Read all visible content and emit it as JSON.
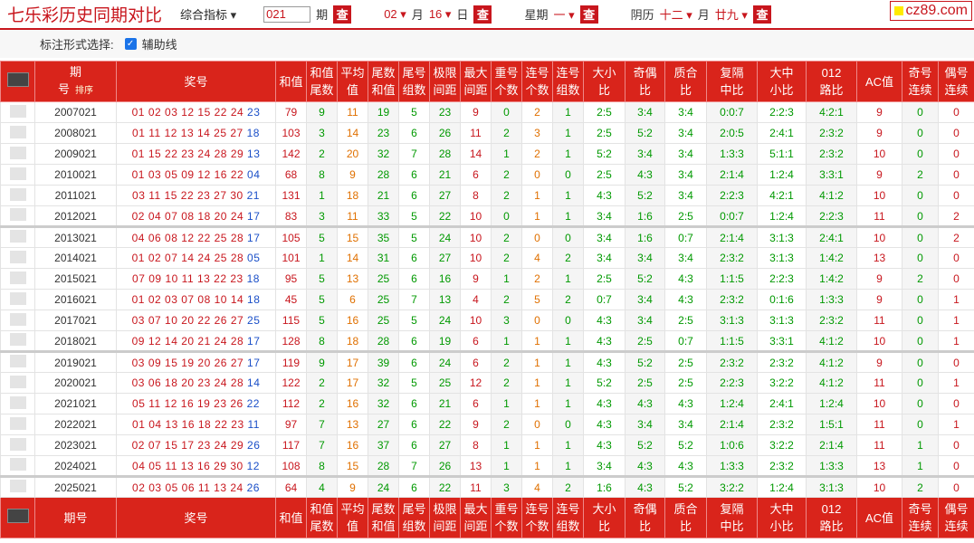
{
  "header": {
    "title": "七乐彩历史同期对比",
    "select": "综合指标",
    "issue": "021",
    "issue_unit": "期",
    "query": "查",
    "month": "02",
    "month_unit": "月",
    "day": "16",
    "day_unit": "日",
    "weekday_label": "星期",
    "weekday": "一",
    "lunar_label": "阴历",
    "lunar_month": "十二",
    "lunar_month_unit": "月",
    "lunar_day": "廿九",
    "logo": "cz89.com"
  },
  "options": {
    "label": "标注形式选择:",
    "checkbox": "辅助线"
  },
  "table": {
    "columns": [
      [
        "期",
        "号"
      ],
      [
        "奖号"
      ],
      [
        "和值"
      ],
      [
        "和值",
        "尾数"
      ],
      [
        "平均",
        "值"
      ],
      [
        "尾数",
        "和值"
      ],
      [
        "尾号",
        "组数"
      ],
      [
        "极限",
        "间距"
      ],
      [
        "最大",
        "间距"
      ],
      [
        "重号",
        "个数"
      ],
      [
        "连号",
        "个数"
      ],
      [
        "连号",
        "组数"
      ],
      [
        "大小",
        "比"
      ],
      [
        "奇偶",
        "比"
      ],
      [
        "质合",
        "比"
      ],
      [
        "复隔",
        "中比"
      ],
      [
        "大中",
        "小比"
      ],
      [
        "012",
        "路比"
      ],
      [
        "AC值"
      ],
      [
        "奇号",
        "连续"
      ],
      [
        "偶号",
        "连续"
      ]
    ],
    "sort": "排序",
    "footer_issue": "期号",
    "rows": [
      {
        "issue": "2007021",
        "balls": [
          "01",
          "02",
          "03",
          "12",
          "15",
          "22",
          "24"
        ],
        "special": "23",
        "stats": [
          79,
          9,
          11,
          19,
          5,
          23,
          9,
          0,
          2,
          1,
          "2:5",
          "3:4",
          "3:4",
          "0:0:7",
          "2:2:3",
          "4:2:1",
          9,
          0,
          0
        ]
      },
      {
        "issue": "2008021",
        "balls": [
          "01",
          "11",
          "12",
          "13",
          "14",
          "25",
          "27"
        ],
        "special": "18",
        "stats": [
          103,
          3,
          14,
          23,
          6,
          26,
          11,
          2,
          3,
          1,
          "2:5",
          "5:2",
          "3:4",
          "2:0:5",
          "2:4:1",
          "2:3:2",
          9,
          0,
          0
        ]
      },
      {
        "issue": "2009021",
        "balls": [
          "01",
          "15",
          "22",
          "23",
          "24",
          "28",
          "29"
        ],
        "special": "13",
        "stats": [
          142,
          2,
          20,
          32,
          7,
          28,
          14,
          1,
          2,
          1,
          "5:2",
          "3:4",
          "3:4",
          "1:3:3",
          "5:1:1",
          "2:3:2",
          10,
          0,
          0
        ]
      },
      {
        "issue": "2010021",
        "balls": [
          "01",
          "03",
          "05",
          "09",
          "12",
          "16",
          "22"
        ],
        "special": "04",
        "stats": [
          68,
          8,
          9,
          28,
          6,
          21,
          6,
          2,
          0,
          0,
          "2:5",
          "4:3",
          "3:4",
          "2:1:4",
          "1:2:4",
          "3:3:1",
          9,
          2,
          0
        ]
      },
      {
        "issue": "2011021",
        "balls": [
          "03",
          "11",
          "15",
          "22",
          "23",
          "27",
          "30"
        ],
        "special": "21",
        "stats": [
          131,
          1,
          18,
          21,
          6,
          27,
          8,
          2,
          1,
          1,
          "4:3",
          "5:2",
          "3:4",
          "2:2:3",
          "4:2:1",
          "4:1:2",
          10,
          0,
          0
        ]
      },
      {
        "issue": "2012021",
        "balls": [
          "02",
          "04",
          "07",
          "08",
          "18",
          "20",
          "24"
        ],
        "special": "17",
        "stats": [
          83,
          3,
          11,
          33,
          5,
          22,
          10,
          0,
          1,
          1,
          "3:4",
          "1:6",
          "2:5",
          "0:0:7",
          "1:2:4",
          "2:2:3",
          11,
          0,
          2
        ]
      },
      {
        "issue": "2013021",
        "balls": [
          "04",
          "06",
          "08",
          "12",
          "22",
          "25",
          "28"
        ],
        "special": "17",
        "stats": [
          105,
          5,
          15,
          35,
          5,
          24,
          10,
          2,
          0,
          0,
          "3:4",
          "1:6",
          "0:7",
          "2:1:4",
          "3:1:3",
          "2:4:1",
          10,
          0,
          2
        ]
      },
      {
        "issue": "2014021",
        "balls": [
          "01",
          "02",
          "07",
          "14",
          "24",
          "25",
          "28"
        ],
        "special": "05",
        "stats": [
          101,
          1,
          14,
          31,
          6,
          27,
          10,
          2,
          4,
          2,
          "3:4",
          "3:4",
          "3:4",
          "2:3:2",
          "3:1:3",
          "1:4:2",
          13,
          0,
          0
        ]
      },
      {
        "issue": "2015021",
        "balls": [
          "07",
          "09",
          "10",
          "11",
          "13",
          "22",
          "23"
        ],
        "special": "18",
        "stats": [
          95,
          5,
          13,
          25,
          6,
          16,
          9,
          1,
          2,
          1,
          "2:5",
          "5:2",
          "4:3",
          "1:1:5",
          "2:2:3",
          "1:4:2",
          9,
          2,
          0
        ]
      },
      {
        "issue": "2016021",
        "balls": [
          "01",
          "02",
          "03",
          "07",
          "08",
          "10",
          "14"
        ],
        "special": "18",
        "stats": [
          45,
          5,
          6,
          25,
          7,
          13,
          4,
          2,
          5,
          2,
          "0:7",
          "3:4",
          "4:3",
          "2:3:2",
          "0:1:6",
          "1:3:3",
          9,
          0,
          1
        ]
      },
      {
        "issue": "2017021",
        "balls": [
          "03",
          "07",
          "10",
          "20",
          "22",
          "26",
          "27"
        ],
        "special": "25",
        "stats": [
          115,
          5,
          16,
          25,
          5,
          24,
          10,
          3,
          0,
          0,
          "4:3",
          "3:4",
          "2:5",
          "3:1:3",
          "3:1:3",
          "2:3:2",
          11,
          0,
          1
        ]
      },
      {
        "issue": "2018021",
        "balls": [
          "09",
          "12",
          "14",
          "20",
          "21",
          "24",
          "28"
        ],
        "special": "17",
        "stats": [
          128,
          8,
          18,
          28,
          6,
          19,
          6,
          1,
          1,
          1,
          "4:3",
          "2:5",
          "0:7",
          "1:1:5",
          "3:3:1",
          "4:1:2",
          10,
          0,
          1
        ]
      },
      {
        "issue": "2019021",
        "balls": [
          "03",
          "09",
          "15",
          "19",
          "20",
          "26",
          "27"
        ],
        "special": "17",
        "stats": [
          119,
          9,
          17,
          39,
          6,
          24,
          6,
          2,
          1,
          1,
          "4:3",
          "5:2",
          "2:5",
          "2:3:2",
          "2:3:2",
          "4:1:2",
          9,
          0,
          0
        ]
      },
      {
        "issue": "2020021",
        "balls": [
          "03",
          "06",
          "18",
          "20",
          "23",
          "24",
          "28"
        ],
        "special": "14",
        "stats": [
          122,
          2,
          17,
          32,
          5,
          25,
          12,
          2,
          1,
          1,
          "5:2",
          "2:5",
          "2:5",
          "2:2:3",
          "3:2:2",
          "4:1:2",
          11,
          0,
          1
        ]
      },
      {
        "issue": "2021021",
        "balls": [
          "05",
          "11",
          "12",
          "16",
          "19",
          "23",
          "26"
        ],
        "special": "22",
        "stats": [
          112,
          2,
          16,
          32,
          6,
          21,
          6,
          1,
          1,
          1,
          "4:3",
          "4:3",
          "4:3",
          "1:2:4",
          "2:4:1",
          "1:2:4",
          10,
          0,
          0
        ]
      },
      {
        "issue": "2022021",
        "balls": [
          "01",
          "04",
          "13",
          "16",
          "18",
          "22",
          "23"
        ],
        "special": "11",
        "stats": [
          97,
          7,
          13,
          27,
          6,
          22,
          9,
          2,
          0,
          0,
          "4:3",
          "3:4",
          "3:4",
          "2:1:4",
          "2:3:2",
          "1:5:1",
          11,
          0,
          1
        ]
      },
      {
        "issue": "2023021",
        "balls": [
          "02",
          "07",
          "15",
          "17",
          "23",
          "24",
          "29"
        ],
        "special": "26",
        "stats": [
          117,
          7,
          16,
          37,
          6,
          27,
          8,
          1,
          1,
          1,
          "4:3",
          "5:2",
          "5:2",
          "1:0:6",
          "3:2:2",
          "2:1:4",
          11,
          1,
          0
        ]
      },
      {
        "issue": "2024021",
        "balls": [
          "04",
          "05",
          "11",
          "13",
          "16",
          "29",
          "30"
        ],
        "special": "12",
        "stats": [
          108,
          8,
          15,
          28,
          7,
          26,
          13,
          1,
          1,
          1,
          "3:4",
          "4:3",
          "4:3",
          "1:3:3",
          "2:3:2",
          "1:3:3",
          13,
          1,
          0
        ]
      },
      {
        "issue": "2025021",
        "balls": [
          "02",
          "03",
          "05",
          "06",
          "11",
          "13",
          "24"
        ],
        "special": "26",
        "stats": [
          64,
          4,
          9,
          24,
          6,
          22,
          11,
          3,
          4,
          2,
          "1:6",
          "4:3",
          "5:2",
          "3:2:2",
          "1:2:4",
          "3:1:3",
          10,
          2,
          0
        ]
      }
    ]
  }
}
